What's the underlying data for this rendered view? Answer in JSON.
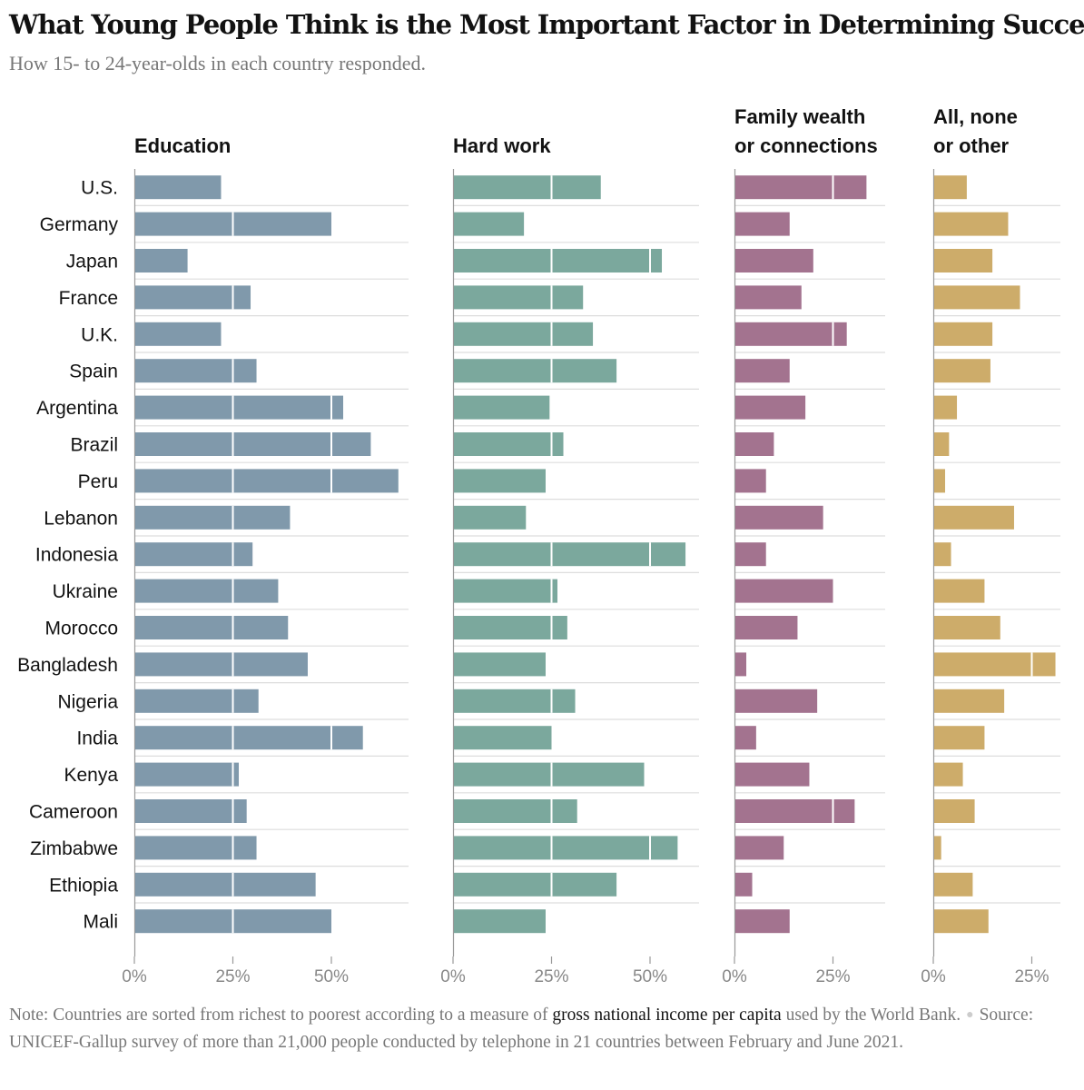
{
  "title": "What Young People Think is the Most Important Factor in Determining Success",
  "subtitle": "How 15- to 24-year-olds in each country responded.",
  "chart_data": {
    "type": "bar",
    "orientation": "horizontal",
    "categories": [
      "U.S.",
      "Germany",
      "Japan",
      "France",
      "U.K.",
      "Spain",
      "Argentina",
      "Brazil",
      "Peru",
      "Lebanon",
      "Indonesia",
      "Ukraine",
      "Morocco",
      "Bangladesh",
      "Nigeria",
      "India",
      "Kenya",
      "Cameroon",
      "Zimbabwe",
      "Ethiopia",
      "Mali"
    ],
    "tick_values": [
      0,
      25,
      50
    ],
    "unit": "%",
    "series": [
      {
        "name": "Education",
        "label_lines": [
          "Education"
        ],
        "color": "#8099ab",
        "xlim": [
          0,
          80
        ],
        "ticks": [
          "0%",
          "25%",
          "50%"
        ],
        "values": [
          22,
          50,
          13.5,
          29.5,
          22,
          31,
          53,
          60,
          67,
          39.5,
          30,
          36.5,
          39,
          44,
          31.5,
          58,
          26.5,
          28.5,
          31,
          46,
          50
        ]
      },
      {
        "name": "Hard work",
        "label_lines": [
          "Hard work"
        ],
        "color": "#7ba89d",
        "xlim": [
          0,
          70
        ],
        "ticks": [
          "0%",
          "25%",
          "50%"
        ],
        "values": [
          37.5,
          18,
          53,
          33,
          35.5,
          41.5,
          24.5,
          28,
          23.5,
          18.5,
          59,
          26.5,
          29,
          23.5,
          31,
          25,
          48.5,
          31.5,
          57,
          41.5,
          23.5
        ]
      },
      {
        "name": "Family wealth or connections",
        "label_lines": [
          "Family wealth",
          "or connections"
        ],
        "color": "#a3738f",
        "xlim": [
          0,
          40
        ],
        "ticks": [
          "0%",
          "25%"
        ],
        "values": [
          33.5,
          14,
          20,
          17,
          28.5,
          14,
          18,
          10,
          8,
          22.5,
          8,
          25,
          16,
          3,
          21,
          5.5,
          19,
          30.5,
          12.5,
          4.5,
          14
        ]
      },
      {
        "name": "All, none or other",
        "label_lines": [
          "All, none",
          "or other"
        ],
        "color": "#cdac6a",
        "xlim": [
          0,
          32
        ],
        "ticks": [
          "0%",
          "25%"
        ],
        "values": [
          8.5,
          19,
          15,
          22,
          15,
          14.5,
          6,
          4,
          3,
          20.5,
          4.5,
          13,
          17,
          31,
          18,
          13,
          7.5,
          10.5,
          2,
          10,
          14
        ]
      }
    ]
  },
  "note": {
    "prefix": "Note: Countries are sorted from richest to poorest according to a measure of ",
    "link": "gross national income per capita",
    "suffix": " used by the World Bank.",
    "source": "Source: UNICEF-Gallup survey of more than 21,000 people conducted by telephone in 21 countries between February and June 2021."
  }
}
